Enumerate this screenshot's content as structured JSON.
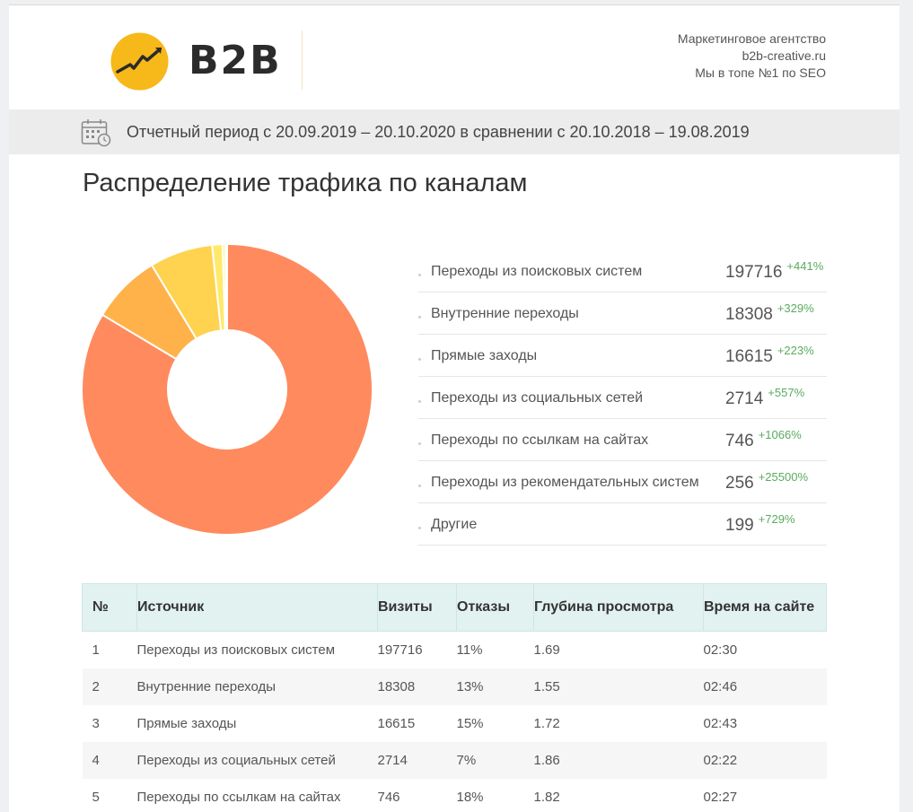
{
  "header": {
    "brand": "B2B",
    "agency_lines": [
      "Маркетинговое агентство",
      "b2b-creative.ru",
      "Мы в топе №1 по SEO"
    ],
    "logo_color": "#f7b81a"
  },
  "period": {
    "text": "Отчетный период с 20.09.2019 – 20.10.2020 в сравнении с 20.10.2018 – 19.08.2019",
    "icon": "calendar-clock-icon"
  },
  "section_title": "Распределение трафика по каналам",
  "chart_data": {
    "type": "pie",
    "donut": true,
    "categories": [
      "Переходы из поисковых систем",
      "Внутренние переходы",
      "Прямые заходы",
      "Переходы из социальных сетей",
      "Переходы по ссылкам на сайтах",
      "Переходы из рекомендательных систем",
      "Другие"
    ],
    "values": [
      197716,
      18308,
      16615,
      2714,
      746,
      256,
      199
    ],
    "colors": [
      "#ff8a5e",
      "#ffb24a",
      "#ffd24f",
      "#ffe96a",
      "#fff27a",
      "#fff48a",
      "#fff6a0"
    ]
  },
  "legend": [
    {
      "label": "Переходы из поисковых систем",
      "value": "197716",
      "change": "+441%"
    },
    {
      "label": "Внутренние переходы",
      "value": "18308",
      "change": "+329%"
    },
    {
      "label": "Прямые заходы",
      "value": "16615",
      "change": "+223%"
    },
    {
      "label": "Переходы из социальных сетей",
      "value": "2714",
      "change": "+557%"
    },
    {
      "label": "Переходы по ссылкам на сайтах",
      "value": "746",
      "change": "+1066%"
    },
    {
      "label": "Переходы из рекомендательных систем",
      "value": "256",
      "change": "+25500%"
    },
    {
      "label": "Другие",
      "value": "199",
      "change": "+729%"
    }
  ],
  "table": {
    "headers": [
      "№",
      "Источник",
      "Визиты",
      "Отказы",
      "Глубина просмотра",
      "Время на сайте"
    ],
    "rows": [
      [
        "1",
        "Переходы из поисковых систем",
        "197716",
        "11%",
        "1.69",
        "02:30"
      ],
      [
        "2",
        "Внутренние переходы",
        "18308",
        "13%",
        "1.55",
        "02:46"
      ],
      [
        "3",
        "Прямые заходы",
        "16615",
        "15%",
        "1.72",
        "02:43"
      ],
      [
        "4",
        "Переходы из социальных сетей",
        "2714",
        "7%",
        "1.86",
        "02:22"
      ],
      [
        "5",
        "Переходы по ссылкам на сайтах",
        "746",
        "18%",
        "1.82",
        "02:27"
      ]
    ]
  }
}
